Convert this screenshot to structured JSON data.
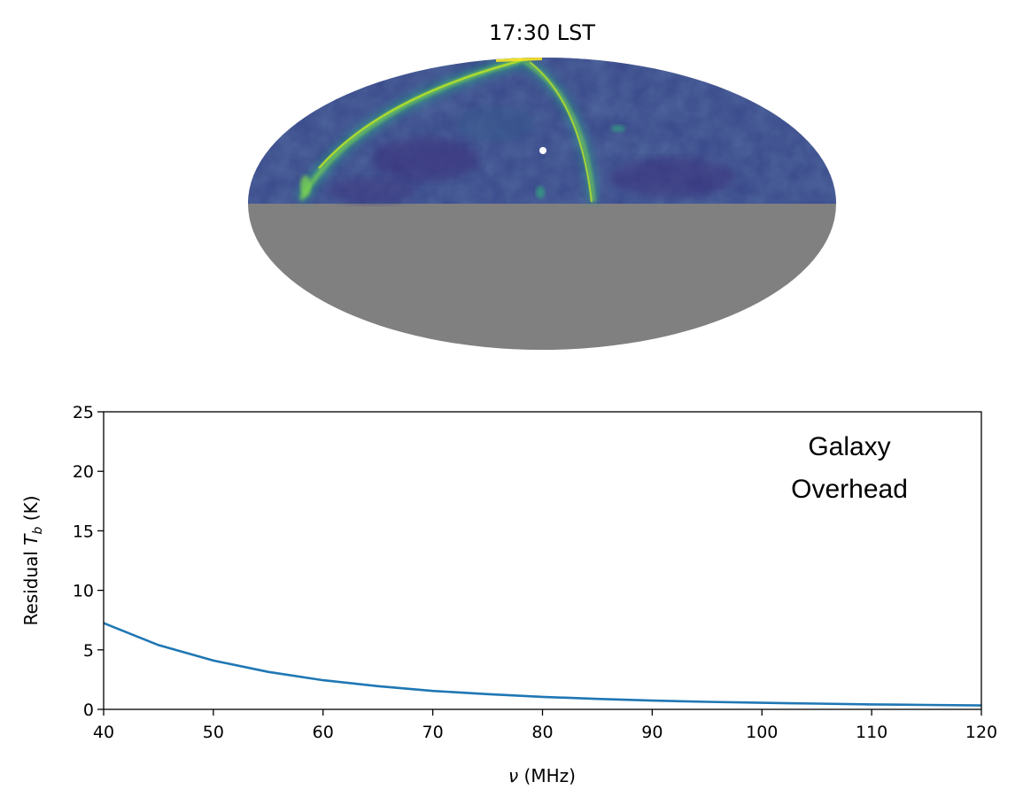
{
  "map": {
    "title": "17:30 LST",
    "projection": "mollweide",
    "colormap": "viridis",
    "masked_color": "#808080",
    "visible_half": "upper",
    "marker_color": "#ffffff"
  },
  "chart_data": {
    "type": "line",
    "xlabel_symbol": "ν",
    "xlabel_unit": " (MHz)",
    "ylabel_prefix": "Residual ",
    "ylabel_symbol": "T",
    "ylabel_subscript": "b",
    "ylabel_unit": " (K)",
    "xlim": [
      40,
      120
    ],
    "ylim": [
      0,
      25
    ],
    "xticks": [
      40,
      50,
      60,
      70,
      80,
      90,
      100,
      110,
      120
    ],
    "yticks": [
      0,
      5,
      10,
      15,
      20,
      25
    ],
    "annotation": [
      "Galaxy",
      "Overhead"
    ],
    "grid": false,
    "series": [
      {
        "color": "#1f77b4",
        "x": [
          40,
          45,
          50,
          55,
          60,
          65,
          70,
          75,
          80,
          85,
          90,
          95,
          100,
          105,
          110,
          115,
          120
        ],
        "y": [
          7.25,
          5.4,
          4.1,
          3.15,
          2.45,
          1.95,
          1.55,
          1.28,
          1.05,
          0.88,
          0.74,
          0.63,
          0.55,
          0.48,
          0.42,
          0.37,
          0.33
        ]
      }
    ]
  }
}
